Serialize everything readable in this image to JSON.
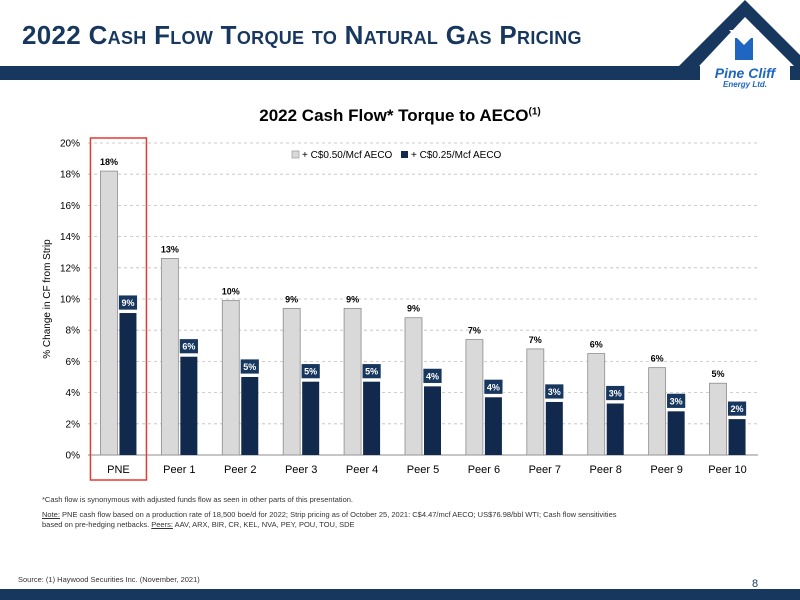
{
  "slide": {
    "title_first": "2022",
    "title_rest": "Cash Flow Torque to Natural Gas Pricing",
    "page_number": "8",
    "source": "Source: (1) Haywood Securities Inc. (November, 2021)",
    "footnote1": "*Cash flow is synonymous with adjusted funds flow as seen in other parts of this presentation.",
    "note_label": "Note:",
    "note_text": " PNE cash flow based on a production rate of 18,500 boe/d for 2022; Strip pricing as of October 25, 2021: C$4.47/mcf AECO; US$76.98/bbl WTI; Cash flow sensitivities",
    "note_text2": "based on pre-hedging netbacks. ",
    "peers_label": "Peers:",
    "peers_text": " AAV, ARX, BIR, CR, KEL, NVA, PEY, POU, TOU, SDE"
  },
  "logo": {
    "name": "Pine Cliff",
    "sub": "Energy Ltd."
  },
  "colors": {
    "navy": "#17375e",
    "light_bar": "#d9d9d9",
    "dark_bar": "#10294d",
    "highlight": "#e03c31"
  },
  "chart_data": {
    "type": "bar",
    "title": "2022 Cash Flow* Torque to AECO",
    "title_sup": "(1)",
    "ylabel": "% Change in CF from Strip",
    "ylim": [
      0,
      20
    ],
    "yticks": [
      "0%",
      "2%",
      "4%",
      "6%",
      "8%",
      "10%",
      "12%",
      "14%",
      "16%",
      "18%",
      "20%"
    ],
    "grid": "horizontal dashed",
    "legend_position": "top-center",
    "highlighted_category": "PNE",
    "categories": [
      "PNE",
      "Peer 1",
      "Peer 2",
      "Peer 3",
      "Peer 4",
      "Peer 5",
      "Peer 6",
      "Peer 7",
      "Peer 8",
      "Peer 9",
      "Peer 10"
    ],
    "series": [
      {
        "name": "+ C$0.50/Mcf AECO",
        "values": [
          18.2,
          12.6,
          9.9,
          9.4,
          9.4,
          8.8,
          7.4,
          6.8,
          6.5,
          5.6,
          4.6
        ],
        "labels": [
          "18%",
          "13%",
          "10%",
          "9%",
          "9%",
          "9%",
          "7%",
          "7%",
          "6%",
          "6%",
          "5%"
        ]
      },
      {
        "name": "+ C$0.25/Mcf AECO",
        "values": [
          9.1,
          6.3,
          5.0,
          4.7,
          4.7,
          4.4,
          3.7,
          3.4,
          3.3,
          2.8,
          2.3
        ],
        "labels": [
          "9%",
          "6%",
          "5%",
          "5%",
          "5%",
          "4%",
          "4%",
          "3%",
          "3%",
          "3%",
          "2%"
        ]
      }
    ]
  }
}
